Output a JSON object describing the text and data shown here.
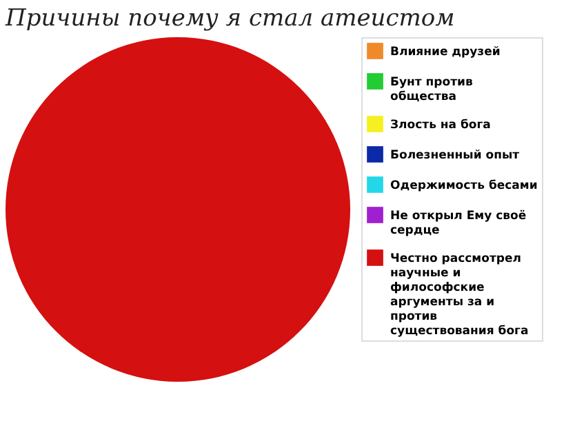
{
  "chart_data": {
    "type": "pie",
    "title": "Причины почему я стал атеистом",
    "categories": [
      "Влияние друзей",
      "Бунт против общества",
      "Злость на бога",
      "Болезненный опыт",
      "Одержимость бесами",
      "Не открыл Ему своё сердце",
      "Честно рассмотрел научные и философские аргументы за и против существования бога"
    ],
    "values": [
      0,
      0,
      0,
      0,
      0,
      0,
      100
    ],
    "colors": [
      "#ee8a2a",
      "#22cc33",
      "#f5f020",
      "#0a2aa8",
      "#22d8e8",
      "#a020d0",
      "#d41010"
    ],
    "legend": "right"
  }
}
